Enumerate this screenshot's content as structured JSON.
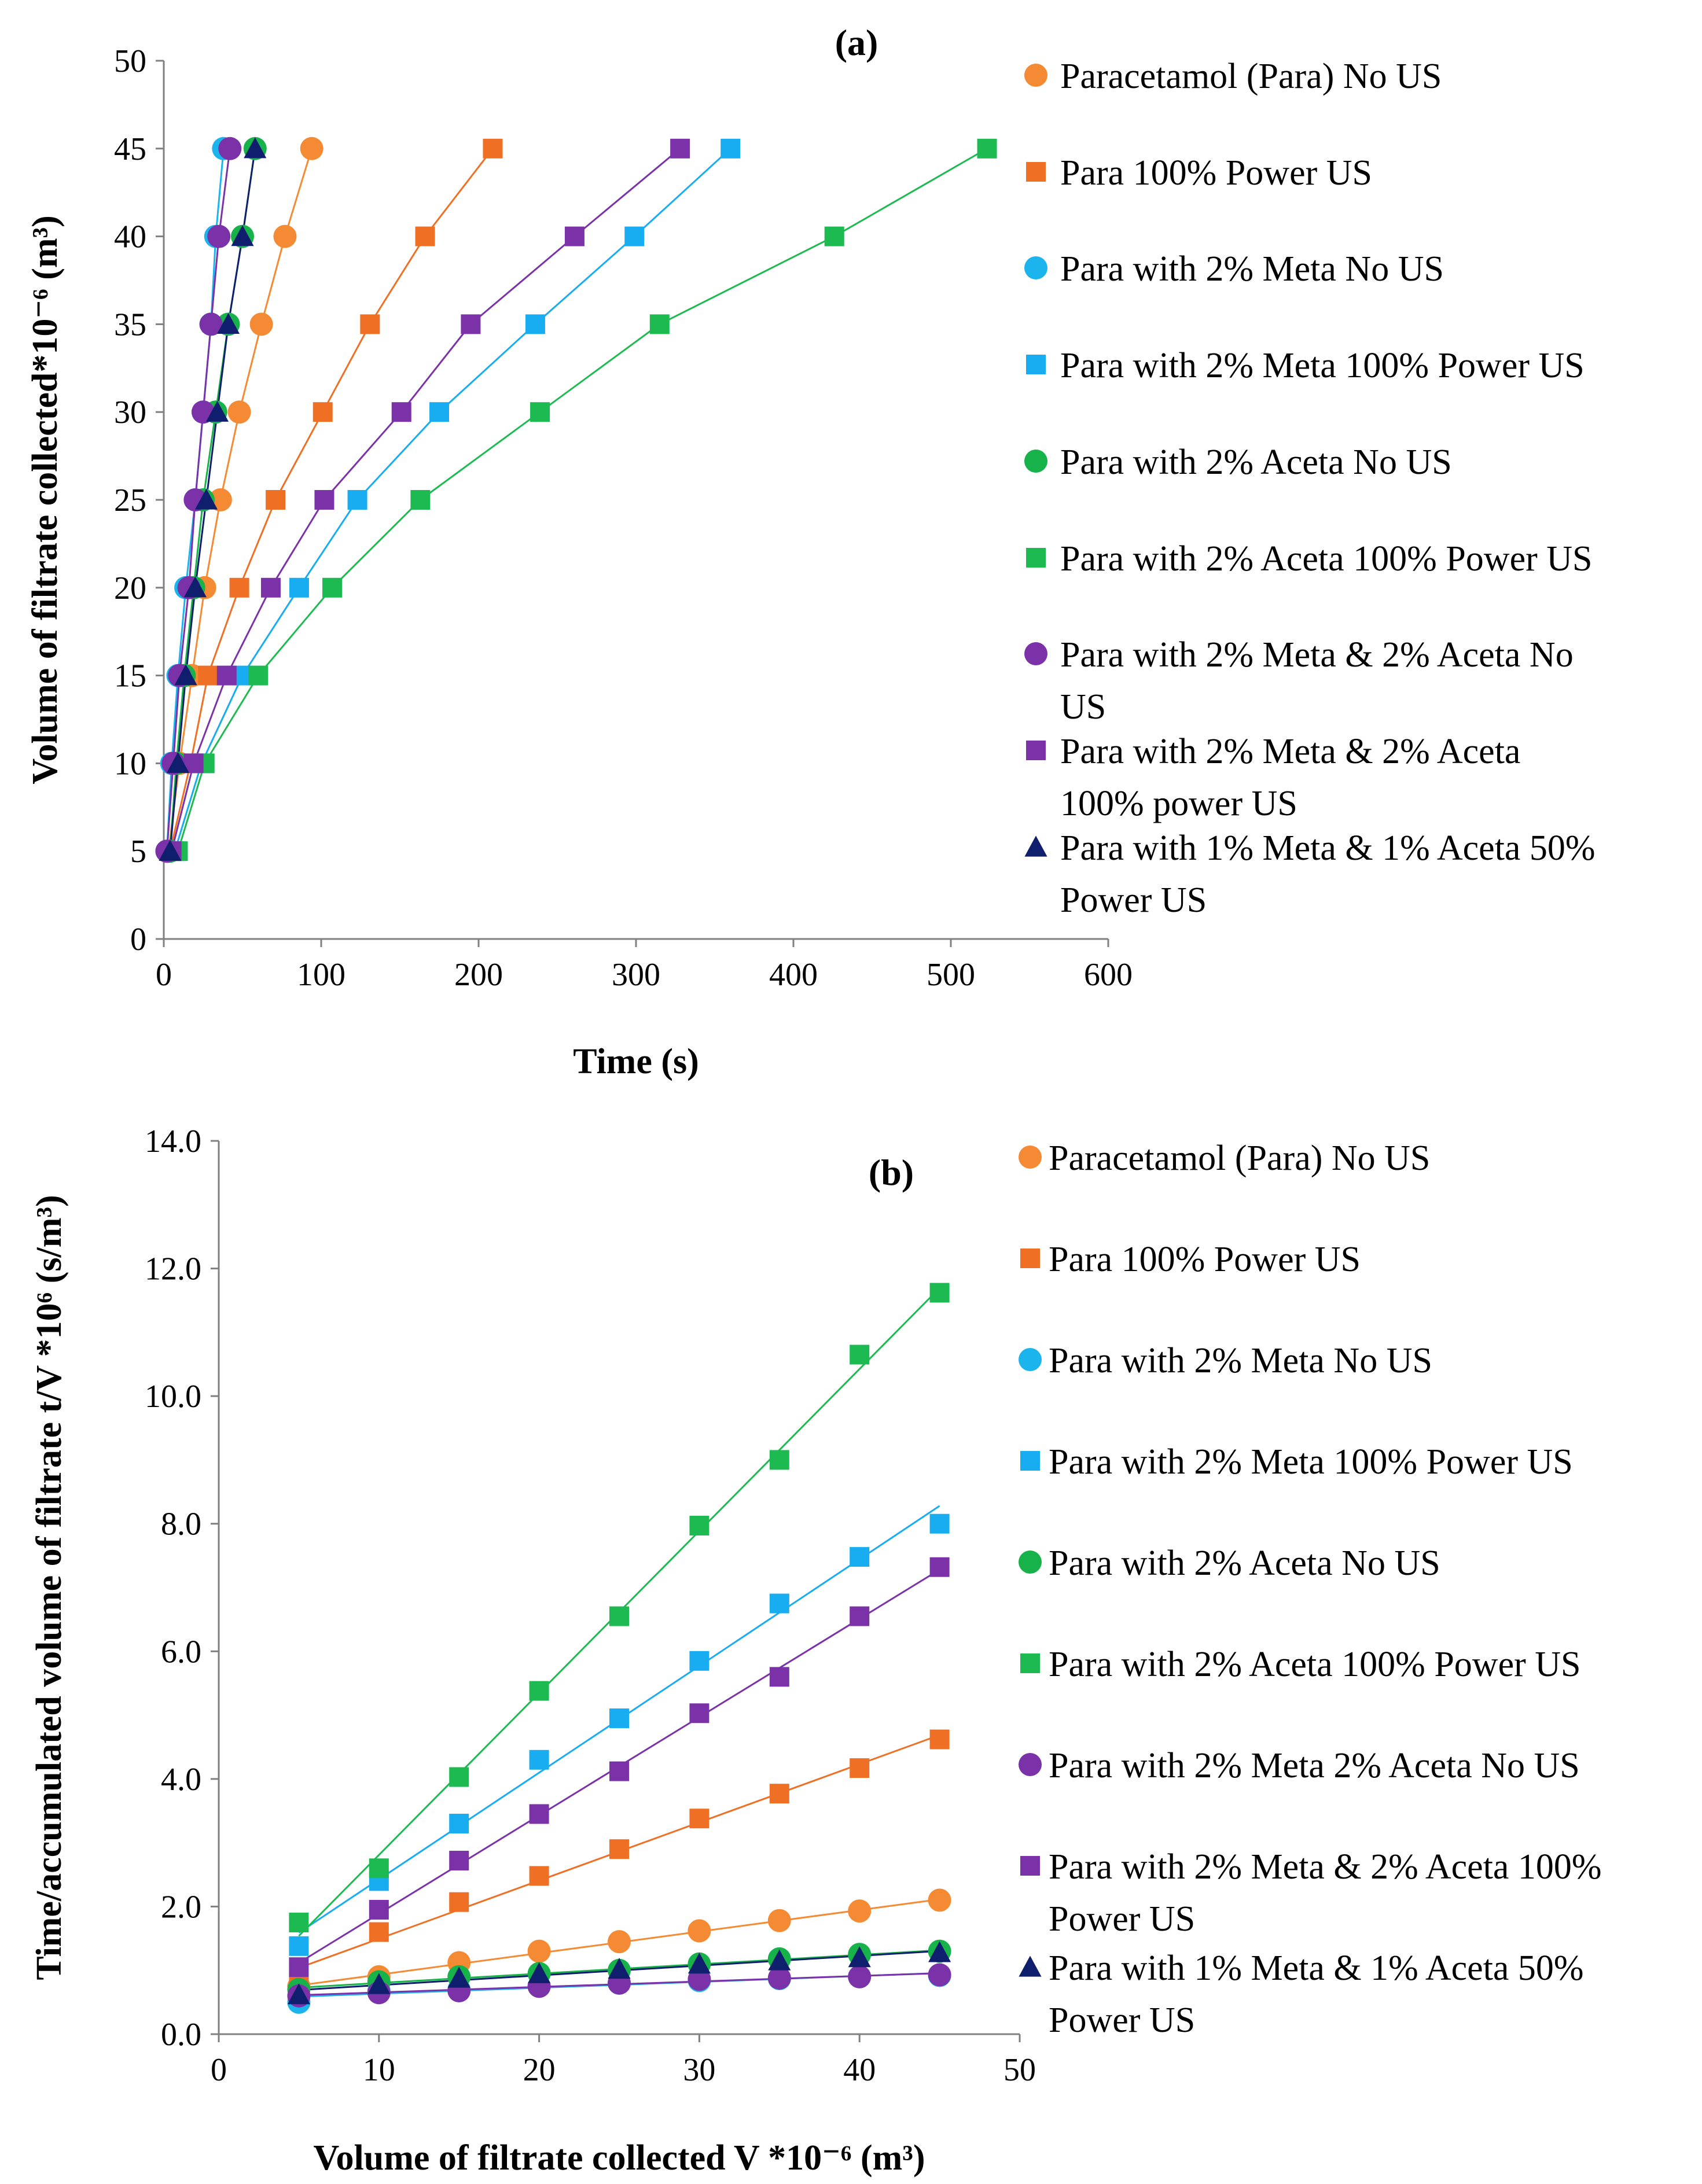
{
  "colors": {
    "orange": "#F58A34",
    "dark_orange": "#EF7024",
    "light_blue": "#1CB4EC",
    "sky_blue": "#18ACF0",
    "green": "#17B24A",
    "bright_green": "#1DBA52",
    "purple": "#7B32A8",
    "navy": "#0F1F6E",
    "black": "#000000"
  },
  "chart_data": [
    {
      "id": "a",
      "type": "scatter",
      "panel_label": "(a)",
      "xlabel": "Time (s)",
      "ylabel": "Volume of filtrate collected*10⁻⁶ (m³)",
      "xlim": [
        0,
        600
      ],
      "ylim": [
        0,
        50
      ],
      "xticks": [
        0,
        100,
        200,
        300,
        400,
        500,
        600
      ],
      "yticks": [
        0,
        5,
        10,
        15,
        20,
        25,
        30,
        35,
        40,
        45,
        50
      ],
      "ytick_labels": [
        "0",
        "5",
        "10",
        "15",
        "20",
        "25",
        "30",
        "35",
        "40",
        "45",
        "50"
      ],
      "series": [
        {
          "name": "Paracetamol (Para) No US",
          "marker": "circle",
          "color": "orange",
          "y": [
            5,
            10,
            15,
            20,
            25,
            30,
            35,
            40,
            45
          ],
          "x": [
            3,
            10,
            18,
            26,
            36,
            48,
            62,
            77,
            94
          ]
        },
        {
          "name": " Para 100% Power US",
          "marker": "square",
          "color": "dark_orange",
          "y": [
            5,
            10,
            15,
            20,
            25,
            30,
            35,
            40,
            45
          ],
          "x": [
            4,
            17,
            28,
            48,
            71,
            101,
            131,
            166,
            209
          ]
        },
        {
          "name": "Para with 2% Meta No US",
          "marker": "circle",
          "color": "light_blue",
          "y": [
            5,
            10,
            15,
            20,
            25,
            30,
            35,
            40,
            45
          ],
          "x": [
            2,
            5,
            9,
            14,
            20,
            25,
            30,
            33,
            38
          ]
        },
        {
          "name": "Para with 2% Meta 100% Power US",
          "marker": "square",
          "color": "sky_blue",
          "y": [
            5,
            10,
            15,
            20,
            25,
            30,
            35,
            40,
            45
          ],
          "x": [
            7,
            24,
            50,
            86,
            123,
            175,
            236,
            299,
            360
          ]
        },
        {
          "name": "Para with 2% Aceta No US",
          "marker": "circle",
          "color": "green",
          "y": [
            5,
            10,
            15,
            20,
            25,
            30,
            35,
            40,
            45
          ],
          "x": [
            4,
            8,
            13,
            19,
            25,
            33,
            41,
            50,
            58
          ]
        },
        {
          "name": "Para with 2% Aceta 100% Power US",
          "marker": "square",
          "color": "bright_green",
          "y": [
            5,
            10,
            15,
            20,
            25,
            30,
            35,
            40,
            45
          ],
          "x": [
            9,
            26,
            60,
            107,
            163,
            239,
            315,
            426,
            523
          ]
        },
        {
          "name": "Para with 2% Meta & 2% Aceta No US",
          "marker": "circle",
          "color": "purple",
          "y": [
            5,
            10,
            15,
            20,
            25,
            30,
            35,
            40,
            45
          ],
          "x": [
            2,
            6,
            10,
            16,
            20,
            25,
            30,
            35,
            42
          ]
        },
        {
          "name": "Para with 2% Meta & 2% Aceta 100% power US",
          "marker": "square",
          "color": "purple",
          "y": [
            5,
            10,
            15,
            20,
            25,
            30,
            35,
            40,
            45
          ],
          "x": [
            5,
            19,
            40,
            68,
            102,
            151,
            195,
            261,
            328
          ]
        },
        {
          "name": "Para with 1% Meta & 1% Aceta 50% Power US",
          "marker": "triangle",
          "color": "navy",
          "y": [
            5,
            10,
            15,
            20,
            25,
            30,
            35,
            40,
            45
          ],
          "x": [
            4,
            9,
            14,
            20,
            27,
            34,
            41,
            50,
            58
          ]
        }
      ],
      "legend_lines": [
        [
          "Paracetamol (Para) No US"
        ],
        [
          " Para 100% Power US"
        ],
        [
          "Para with 2% Meta No US"
        ],
        [
          "Para with 2% Meta 100% Power US"
        ],
        [
          "Para with 2% Aceta No US"
        ],
        [
          "Para with 2% Aceta 100% Power US"
        ],
        [
          "Para with 2% Meta & 2% Aceta No",
          "US"
        ],
        [
          "Para with 2% Meta & 2% Aceta",
          "100% power US"
        ],
        [
          "Para with 1% Meta & 1% Aceta 50%",
          "Power US"
        ]
      ]
    },
    {
      "id": "b",
      "type": "scatter",
      "panel_label": "(b)",
      "xlabel": "Volume of filtrate collected V *10⁻⁶ (m³)",
      "ylabel": "Time/accumulated volume of filtrate t/V *10⁶ (s/m³)",
      "xlim": [
        0,
        50
      ],
      "ylim": [
        0,
        14
      ],
      "xticks": [
        0,
        10,
        20,
        30,
        40,
        50
      ],
      "yticks": [
        0,
        2,
        4,
        6,
        8,
        10,
        12,
        14
      ],
      "ytick_labels": [
        "0.0",
        "2.0",
        "4.0",
        "6.0",
        "8.0",
        "10.0",
        "12.0",
        "14.0"
      ],
      "x": [
        5,
        10,
        15,
        20,
        25,
        30,
        35,
        40,
        45
      ],
      "series": [
        {
          "name": " Paracetamol (Para) No US",
          "marker": "circle",
          "color": "orange",
          "values": [
            0.75,
            0.9,
            1.12,
            1.3,
            1.45,
            1.62,
            1.78,
            1.93,
            2.1
          ]
        },
        {
          "name": "Para 100% Power US",
          "marker": "square",
          "color": "dark_orange",
          "values": [
            0.78,
            1.6,
            2.07,
            2.48,
            2.9,
            3.38,
            3.77,
            4.17,
            4.62
          ]
        },
        {
          "name": "Para with 2% Meta No US",
          "marker": "circle",
          "color": "light_blue",
          "values": [
            0.5,
            0.68,
            0.7,
            0.75,
            0.8,
            0.84,
            0.87,
            0.9,
            0.92
          ]
        },
        {
          "name": "Para with 2% Meta 100% Power US",
          "marker": "square",
          "color": "sky_blue",
          "values": [
            1.38,
            2.4,
            3.3,
            4.3,
            4.95,
            5.85,
            6.75,
            7.48,
            8.0
          ]
        },
        {
          "name": "Para with 2% Aceta No US",
          "marker": "circle",
          "color": "green",
          "values": [
            0.7,
            0.82,
            0.9,
            0.95,
            1.0,
            1.1,
            1.18,
            1.25,
            1.3
          ]
        },
        {
          "name": "Para with 2% Aceta 100% Power US",
          "marker": "square",
          "color": "bright_green",
          "values": [
            1.75,
            2.6,
            4.03,
            5.38,
            6.55,
            7.97,
            9.0,
            10.65,
            11.62
          ]
        },
        {
          "name": "Para with 2% Meta 2% Aceta No US",
          "marker": "circle",
          "color": "purple",
          "values": [
            0.6,
            0.65,
            0.68,
            0.75,
            0.8,
            0.86,
            0.88,
            0.9,
            0.93
          ]
        },
        {
          "name": "Para with 2% Meta & 2% Aceta 100% Power US",
          "marker": "square",
          "color": "purple",
          "values": [
            1.05,
            1.95,
            2.72,
            3.45,
            4.12,
            5.03,
            5.6,
            6.55,
            7.32
          ]
        },
        {
          "name": "Para with 1% Meta & 1% Aceta 50% Power US",
          "marker": "triangle",
          "color": "navy",
          "values": [
            0.62,
            0.78,
            0.88,
            0.95,
            1.02,
            1.1,
            1.15,
            1.2,
            1.28
          ]
        }
      ],
      "legend_lines": [
        [
          " Paracetamol (Para) No US"
        ],
        [
          "Para 100% Power US"
        ],
        [
          "Para with 2% Meta No US"
        ],
        [
          "Para with 2% Meta 100% Power US"
        ],
        [
          "Para with 2% Aceta No US"
        ],
        [
          "Para with 2% Aceta 100% Power US"
        ],
        [
          "Para with 2% Meta 2% Aceta No US"
        ],
        [
          "Para with 2% Meta & 2% Aceta 100%",
          "Power US"
        ],
        [
          "Para with 1% Meta & 1% Aceta 50%",
          "Power US"
        ]
      ]
    }
  ]
}
